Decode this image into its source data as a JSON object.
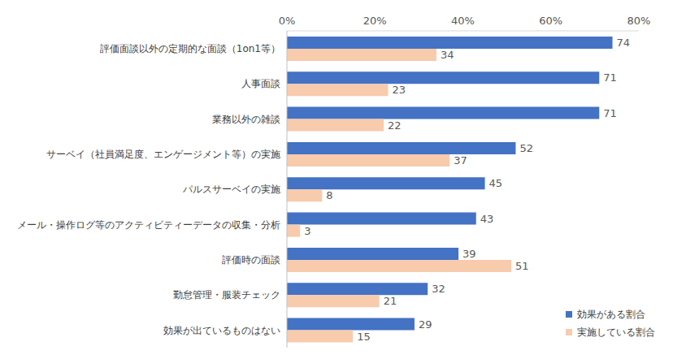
{
  "chart_data": {
    "type": "bar",
    "orientation": "horizontal",
    "categories": [
      "評価面談以外の定期的な面談（1on1等）",
      "人事面談",
      "業務以外の雑談",
      "サーベイ（社員満足度、エンゲージメント等）の実施",
      "パルスサーベイの実施",
      "メール・操作ログ等のアクティビティーデータの収集・分析",
      "評価時の面談",
      "勤怠管理・服装チェック",
      "効果が出ているものはない"
    ],
    "series": [
      {
        "name": "効果がある割合",
        "color": "#4472c4",
        "values": [
          74,
          71,
          71,
          52,
          45,
          43,
          39,
          32,
          29
        ]
      },
      {
        "name": "実施している割合",
        "color": "#f8cbad",
        "values": [
          34,
          23,
          22,
          37,
          8,
          3,
          51,
          21,
          15
        ]
      }
    ],
    "xlim": [
      0,
      80
    ],
    "xticks": [
      {
        "value": 0,
        "label": "0%"
      },
      {
        "value": 20,
        "label": "20%"
      },
      {
        "value": 40,
        "label": "40%"
      },
      {
        "value": 60,
        "label": "60%"
      },
      {
        "value": 80,
        "label": "80%"
      }
    ],
    "data_labels": true,
    "grid": false,
    "legend": "lower right"
  }
}
